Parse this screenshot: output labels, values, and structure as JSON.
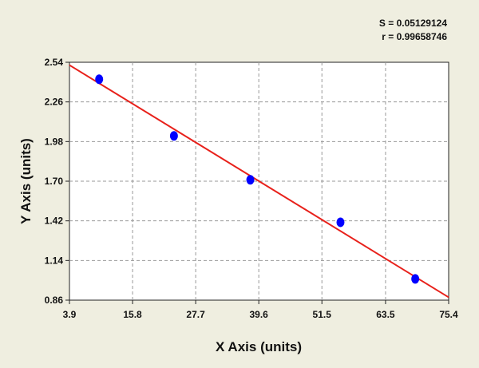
{
  "chart_data": {
    "type": "scatter",
    "annotations": [
      "S = 0.05129124",
      "r = 0.99658746"
    ],
    "x_label": "X Axis (units)",
    "y_label": "Y Axis (units)",
    "x": [
      9.5,
      23.6,
      38.0,
      55.0,
      69.1
    ],
    "series": [
      {
        "color": "#0000ff",
        "values": [
          2.42,
          2.02,
          1.71,
          1.41,
          1.01
        ]
      }
    ],
    "fit_line": {
      "color": "#e8211b",
      "x": [
        3.9,
        75.4
      ],
      "values": [
        2.52,
        0.88
      ]
    },
    "xlim": [
      3.9,
      75.4
    ],
    "xticks": [
      3.9,
      15.8,
      27.7,
      39.6,
      51.5,
      63.5,
      75.4
    ],
    "ylim": [
      0.86,
      2.54
    ],
    "yticks": [
      0.86,
      1.14,
      1.42,
      {
        "value": 1.7,
        "label": "1.70"
      },
      1.98,
      2.26,
      2.54
    ],
    "grid": true
  }
}
